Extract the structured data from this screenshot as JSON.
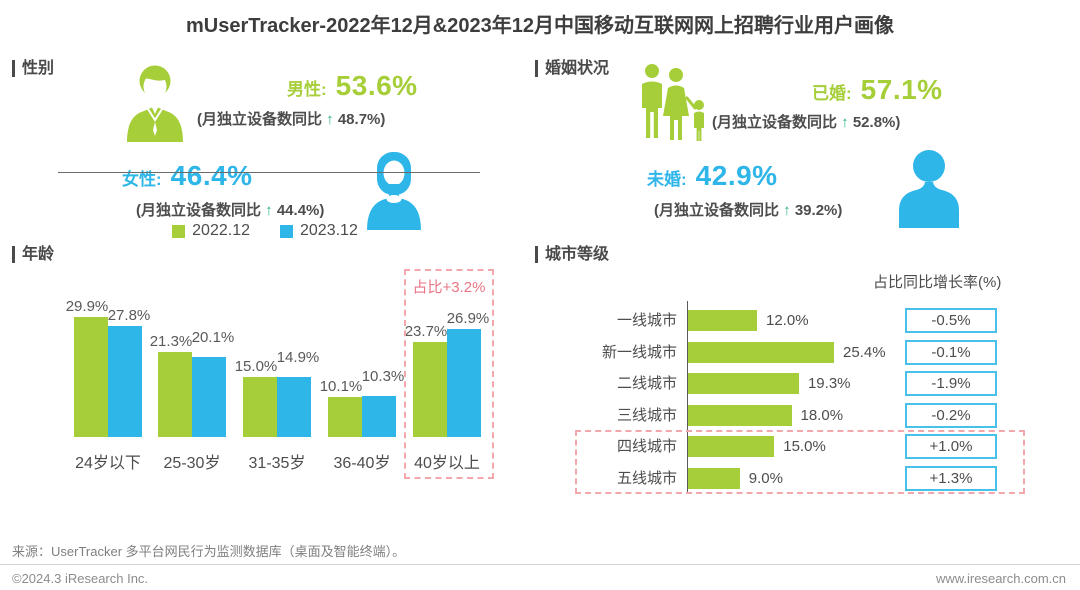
{
  "page": {
    "title": "mUserTracker-2022年12月&2023年12月中国移动互联网网上招聘行业用户画像",
    "source_note": "来源：UserTracker 多平台网民行为监测数据库（桌面及智能终端）。",
    "copyright": "©2024.3 iResearch Inc.",
    "website": "www.iresearch.com.cn"
  },
  "colors": {
    "green": "#a6ce39",
    "blue": "#2eb6e9",
    "teal_arrow": "#2fb380",
    "red": "#e97584",
    "red_border": "#f2a7ac",
    "box_border": "#49c0e8"
  },
  "gender": {
    "header": "性别",
    "male": {
      "label": "男性:",
      "value": "53.6%",
      "note_prefix": "(月独立设备数同比 ",
      "note_arrow": "↑",
      "note_suffix": " 48.7%)"
    },
    "female": {
      "label": "女性:",
      "value": "46.4%",
      "note_prefix": "(月独立设备数同比 ",
      "note_arrow": "↑",
      "note_suffix": " 44.4%)"
    }
  },
  "marital": {
    "header": "婚姻状况",
    "married": {
      "label": "已婚:",
      "value": "57.1%",
      "note_prefix": "(月独立设备数同比 ",
      "note_arrow": "↑",
      "note_suffix": " 52.8%)"
    },
    "unmarried": {
      "label": "未婚:",
      "value": "42.9%",
      "note_prefix": "(月独立设备数同比 ",
      "note_arrow": "↑",
      "note_suffix": " 39.2%)"
    }
  },
  "chart_data": [
    {
      "type": "bar",
      "section_label": "年龄",
      "categories": [
        "24岁以下",
        "25-30岁",
        "31-35岁",
        "36-40岁",
        "40岁以上"
      ],
      "series": [
        {
          "name": "2022.12",
          "values": [
            29.9,
            21.3,
            15.0,
            10.1,
            23.7
          ]
        },
        {
          "name": "2023.12",
          "values": [
            27.8,
            20.1,
            14.9,
            10.3,
            26.9
          ]
        }
      ],
      "ylim": [
        0,
        32
      ],
      "grid": false,
      "legend_position": "bottom",
      "annotation": {
        "text": "占比+3.2%",
        "target": "40岁以上"
      }
    },
    {
      "type": "bar",
      "orientation": "horizontal",
      "section_label": "城市等级",
      "column_header": "占比同比增长率(%)",
      "categories": [
        "一线城市",
        "新一线城市",
        "二线城市",
        "三线城市",
        "四线城市",
        "五线城市"
      ],
      "values": [
        12.0,
        25.4,
        19.3,
        18.0,
        15.0,
        9.0
      ],
      "changes": [
        "-0.5%",
        "-0.1%",
        "-1.9%",
        "-0.2%",
        "+1.0%",
        "+1.3%"
      ],
      "highlighted_categories": [
        "四线城市",
        "五线城市"
      ],
      "xlim": [
        0,
        28
      ],
      "grid": false
    }
  ]
}
